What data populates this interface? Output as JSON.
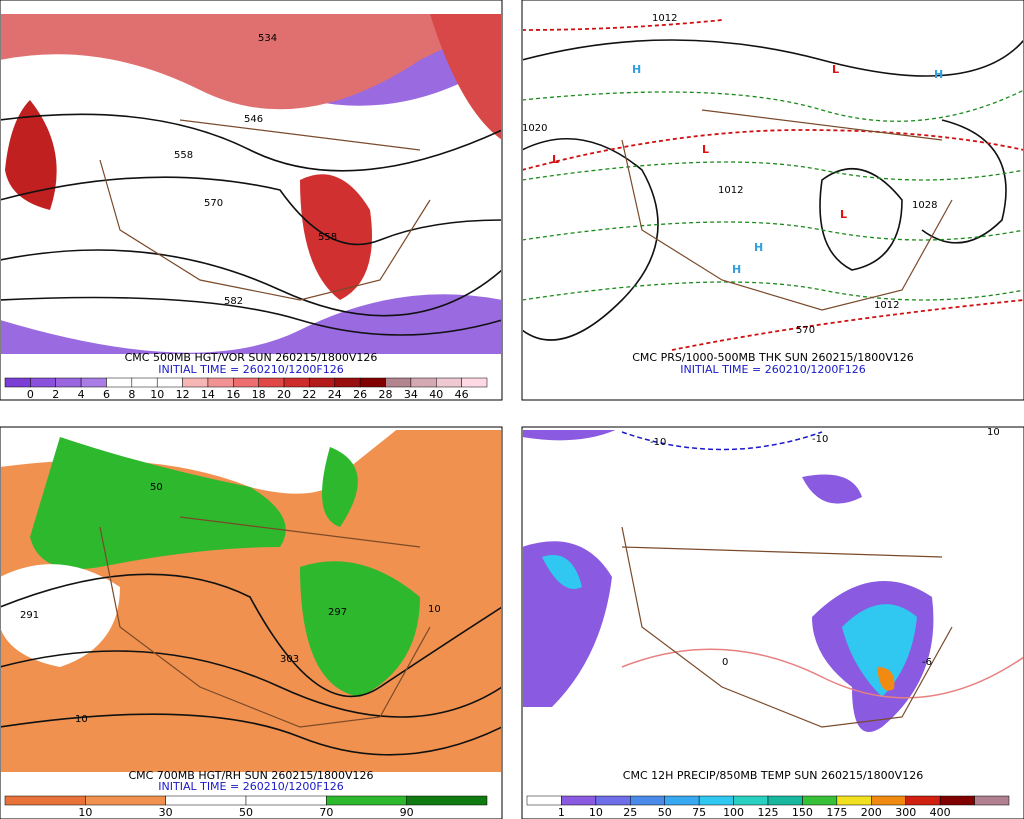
{
  "panels": [
    {
      "title": "CMC 500MB HGT/VOR SUN 260215/1800V126",
      "initial_time": "INITIAL TIME = 260210/1200F126",
      "contour_labels": [
        "534",
        "546",
        "558",
        "570",
        "582",
        "558"
      ],
      "colorbar": {
        "labels": [
          "0",
          "2",
          "4",
          "6",
          "8",
          "10",
          "12",
          "14",
          "16",
          "18",
          "20",
          "22",
          "24",
          "26",
          "28",
          "34",
          "40",
          "46"
        ],
        "colors": [
          "#7b3fd6",
          "#8a52dc",
          "#9966e0",
          "#a97ce6",
          "#ffffff",
          "#ffffff",
          "#ffffff",
          "#f7b6b6",
          "#f29292",
          "#ec6e6e",
          "#e04848",
          "#cc2c2c",
          "#b31a1a",
          "#990e0e",
          "#800000",
          "#b3868f",
          "#d4a9b3",
          "#f0c8d2",
          "#ffd9e3"
        ]
      }
    },
    {
      "title": "CMC PRS/1000-500MB THK SUN 260215/1800V126",
      "initial_time": "INITIAL TIME = 260210/1200F126",
      "contour_labels": [
        "1012",
        "1012",
        "1020",
        "1028",
        "1012",
        "570"
      ]
    },
    {
      "title": "CMC 700MB HGT/RH SUN 260215/1800V126",
      "initial_time": "INITIAL TIME = 260210/1200F126",
      "contour_labels": [
        "50",
        "291",
        "297",
        "303",
        "10",
        "10"
      ],
      "colorbar": {
        "labels": [
          "10",
          "30",
          "50",
          "70",
          "90"
        ],
        "colors": [
          "#e8723a",
          "#f0914f",
          "#ffffff",
          "#ffffff",
          "#2db82d",
          "#0f7a0f"
        ]
      }
    },
    {
      "title": "CMC 12H PRECIP/850MB TEMP SUN 260215/1800V126",
      "initial_time": "",
      "contour_labels": [
        "-10",
        "-10",
        "0",
        "-6",
        "10"
      ],
      "colorbar": {
        "labels": [
          "1",
          "10",
          "25",
          "50",
          "75",
          "100",
          "125",
          "150",
          "175",
          "200",
          "300",
          "400"
        ],
        "colors": [
          "#ffffff",
          "#8a5ae0",
          "#6e6ee8",
          "#4a8ae8",
          "#38a8f0",
          "#30c8f0",
          "#28d0c0",
          "#18b8a0",
          "#38c038",
          "#f0e020",
          "#f08a10",
          "#d02010",
          "#800000",
          "#b08090"
        ]
      }
    }
  ]
}
